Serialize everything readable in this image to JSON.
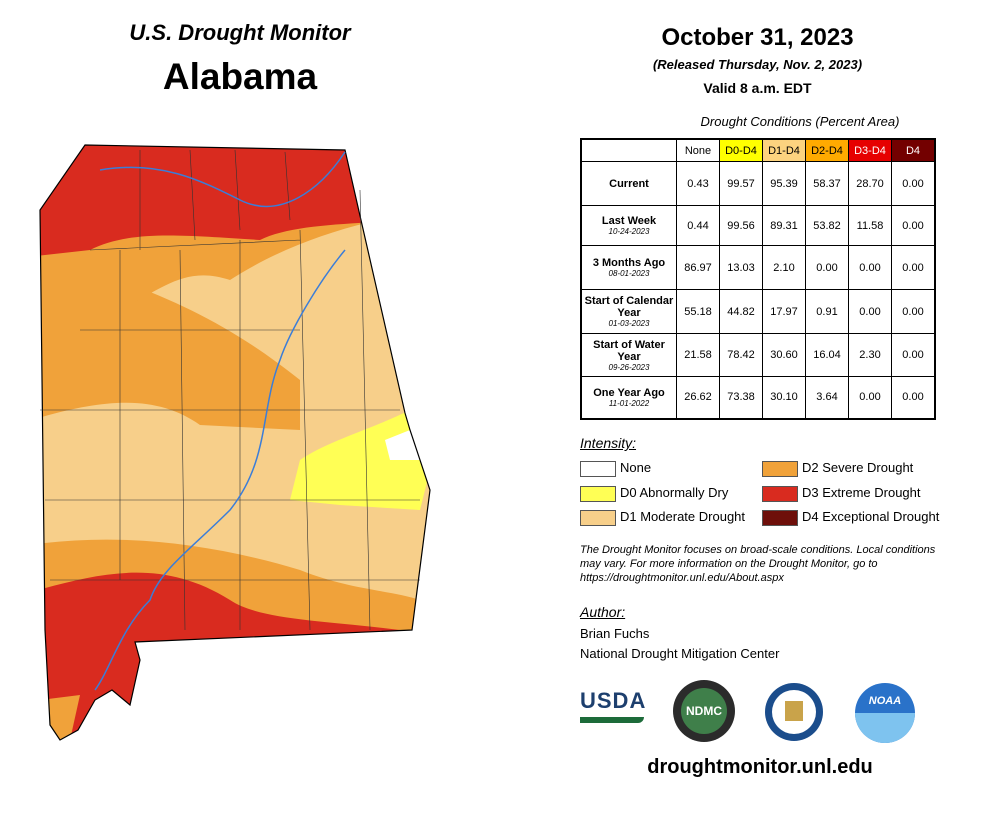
{
  "header": {
    "product": "U.S. Drought Monitor",
    "state": "Alabama",
    "date": "October 31, 2023",
    "released": "(Released Thursday, Nov. 2, 2023)",
    "valid": "Valid 8 a.m. EDT"
  },
  "table": {
    "caption": "Drought Conditions (Percent Area)",
    "columns": [
      {
        "label": "None",
        "color": "#ffffff"
      },
      {
        "label": "D0-D4",
        "color": "#ffff00"
      },
      {
        "label": "D1-D4",
        "color": "#fcd37f"
      },
      {
        "label": "D2-D4",
        "color": "#ffaa00"
      },
      {
        "label": "D3-D4",
        "color": "#e60000"
      },
      {
        "label": "D4",
        "color": "#730000"
      }
    ],
    "rows": [
      {
        "label": "Current",
        "values": [
          "0.43",
          "99.57",
          "95.39",
          "58.37",
          "28.70",
          "0.00"
        ]
      },
      {
        "label": "Last Week",
        "date": "10-24-2023",
        "values": [
          "0.44",
          "99.56",
          "89.31",
          "53.82",
          "11.58",
          "0.00"
        ]
      },
      {
        "label": "3 Months Ago",
        "date": "08-01-2023",
        "values": [
          "86.97",
          "13.03",
          "2.10",
          "0.00",
          "0.00",
          "0.00"
        ]
      },
      {
        "label": "Start of Calendar Year",
        "date": "01-03-2023",
        "values": [
          "55.18",
          "44.82",
          "17.97",
          "0.91",
          "0.00",
          "0.00"
        ]
      },
      {
        "label": "Start of Water Year",
        "date": "09-26-2023",
        "values": [
          "21.58",
          "78.42",
          "30.60",
          "16.04",
          "2.30",
          "0.00"
        ]
      },
      {
        "label": "One Year Ago",
        "date": "11-01-2022",
        "values": [
          "26.62",
          "73.38",
          "30.10",
          "3.64",
          "0.00",
          "0.00"
        ]
      }
    ]
  },
  "legend": {
    "title": "Intensity:",
    "items": [
      {
        "label": "None",
        "color": "#ffffff"
      },
      {
        "label": "D0 Abnormally Dry",
        "color": "#ffff55"
      },
      {
        "label": "D1 Moderate Drought",
        "color": "#f7cf8a"
      },
      {
        "label": "D2 Severe Drought",
        "color": "#f0a23a"
      },
      {
        "label": "D3 Extreme Drought",
        "color": "#d92b1f"
      },
      {
        "label": "D4 Exceptional Drought",
        "color": "#6e0f0a"
      }
    ]
  },
  "note": "The Drought Monitor focuses on broad-scale conditions. Local conditions may vary. For more information on the Drought Monitor, go to https://droughtmonitor.unl.edu/About.aspx",
  "author": {
    "title": "Author:",
    "name": "Brian Fuchs",
    "organization": "National Drought Mitigation Center"
  },
  "logos": [
    "USDA",
    "NDMC",
    "NOAA"
  ],
  "footer": "droughtmonitor.unl.edu"
}
